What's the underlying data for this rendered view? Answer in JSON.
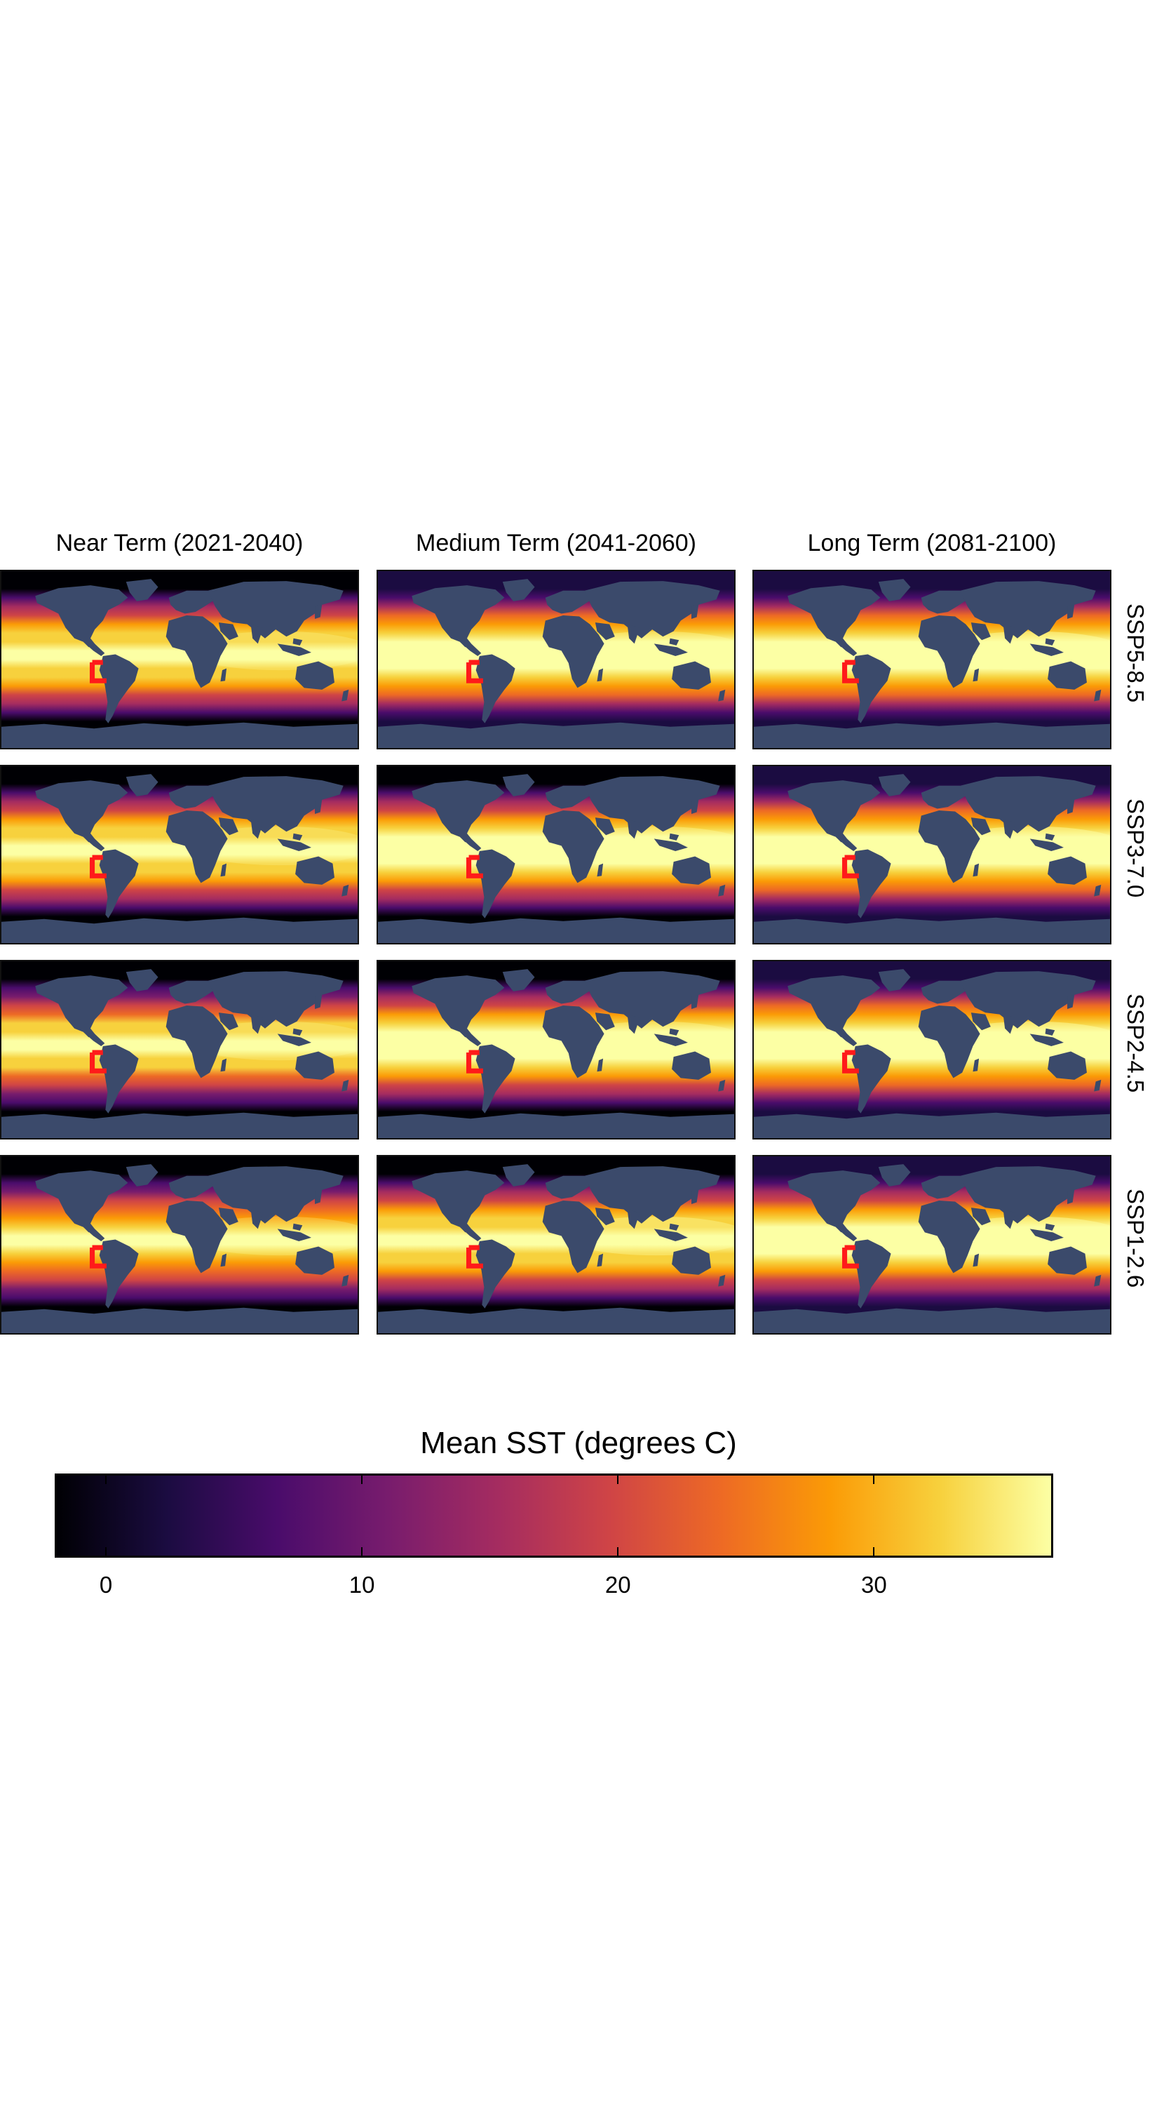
{
  "figure": {
    "columns": [
      "Near Term (2021-2040)",
      "Medium Term (2041-2060)",
      "Long Term (2081-2100)"
    ],
    "rows": [
      "SSP5-8.5",
      "SSP3-7.0",
      "SSP2-4.5",
      "SSP1-2.6"
    ],
    "colorbar": {
      "title": "Mean SST (degrees C)",
      "range": [
        -2,
        37
      ],
      "ticks": [
        "0",
        "10",
        "20",
        "30"
      ],
      "tick_values": [
        0,
        10,
        20,
        30
      ],
      "colormap": [
        "#000004",
        "#1b0c41",
        "#4a0c6b",
        "#781c6d",
        "#a52c60",
        "#cf4446",
        "#ed6925",
        "#fb9b06",
        "#f7d13d",
        "#fcffa4"
      ]
    },
    "colors": {
      "land": "#3b4a6b",
      "region_box": "#ff1a1a"
    }
  }
}
